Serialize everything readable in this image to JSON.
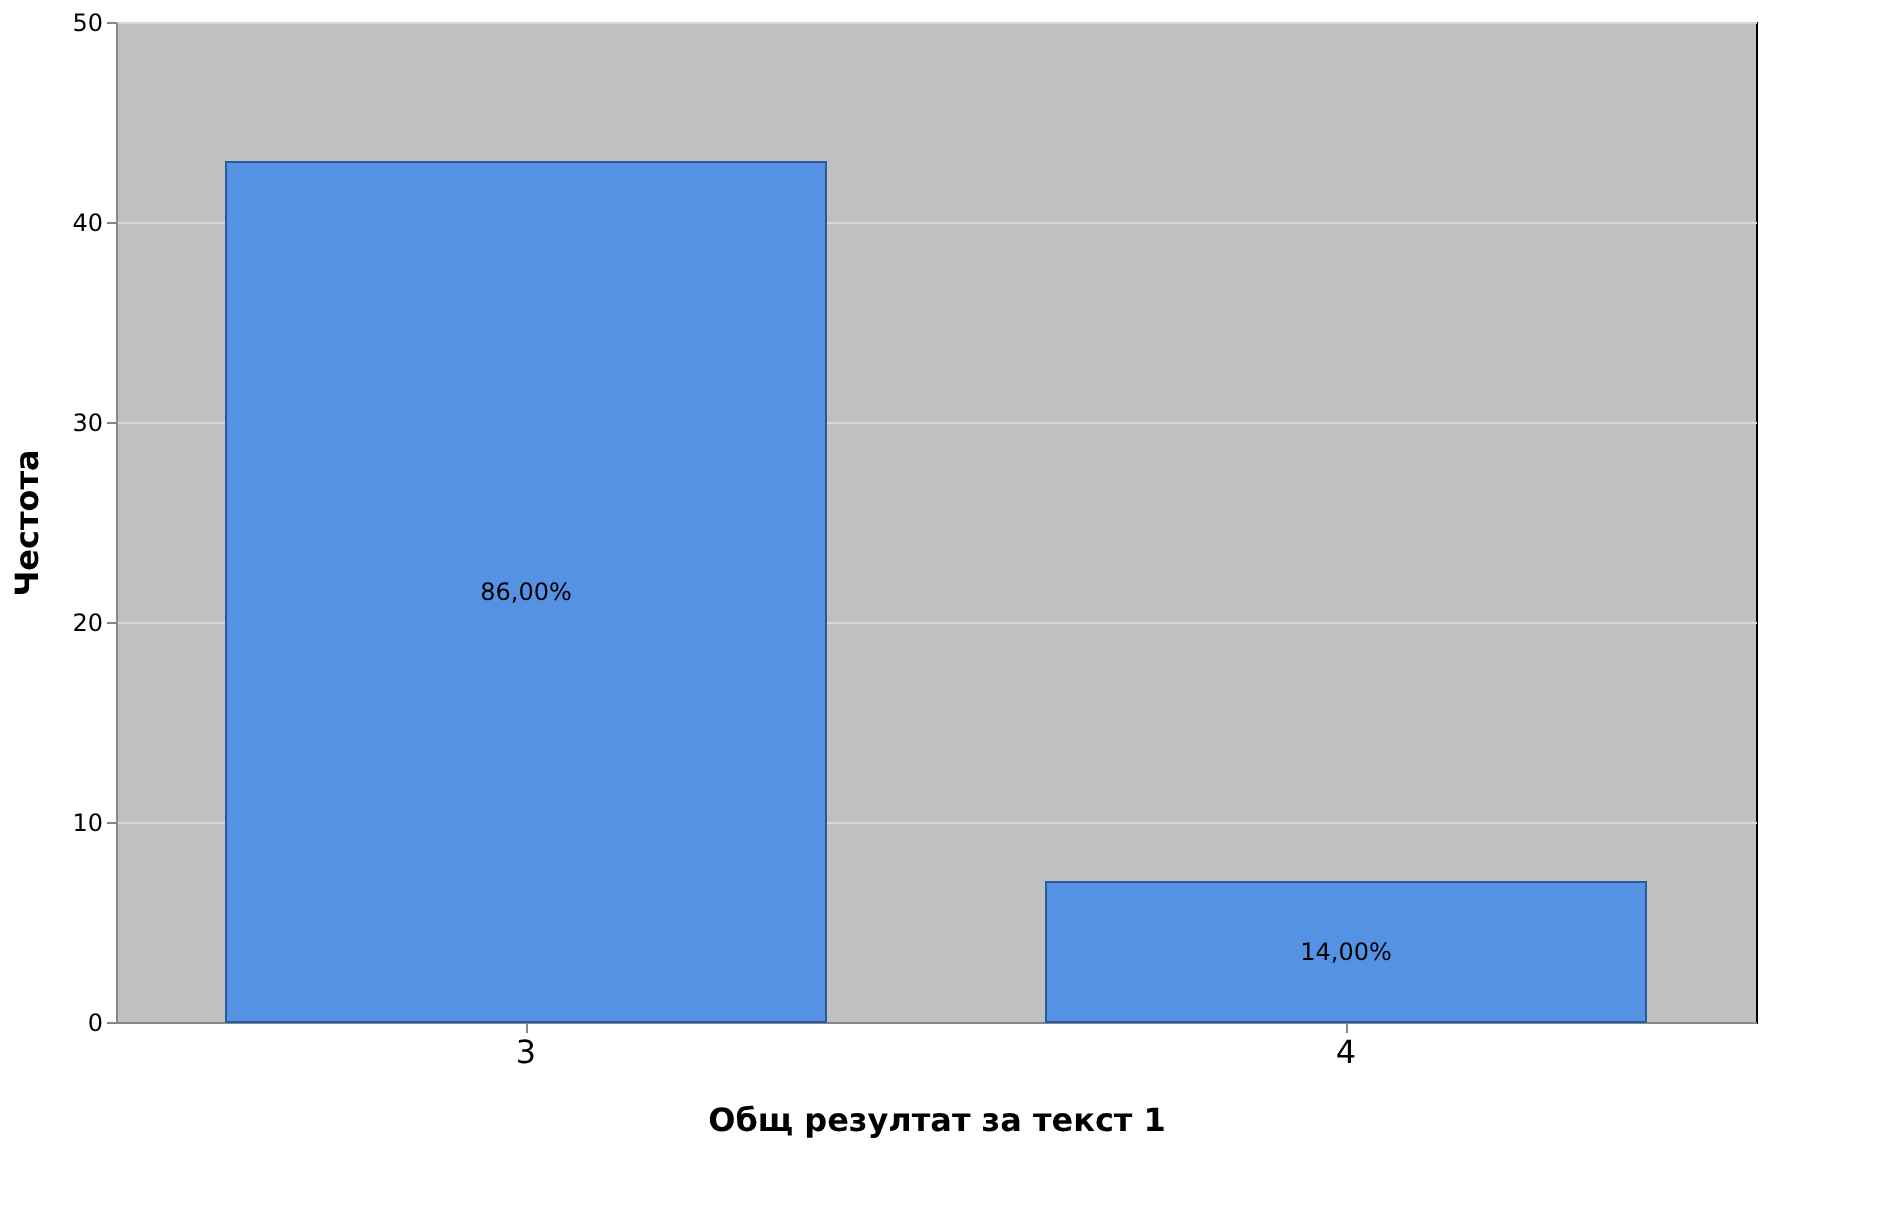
{
  "chart_data": {
    "type": "bar",
    "xlabel": "Общ резултат за текст 1",
    "ylabel": "Честота",
    "categories": [
      "3",
      "4"
    ],
    "values": [
      43,
      7
    ],
    "color": "#5592e3",
    "annotations": [
      "86,00%",
      "14,00%"
    ],
    "ylim": [
      0,
      50
    ],
    "yticks": [
      0,
      10,
      20,
      30,
      40,
      50
    ],
    "grid": "y"
  }
}
